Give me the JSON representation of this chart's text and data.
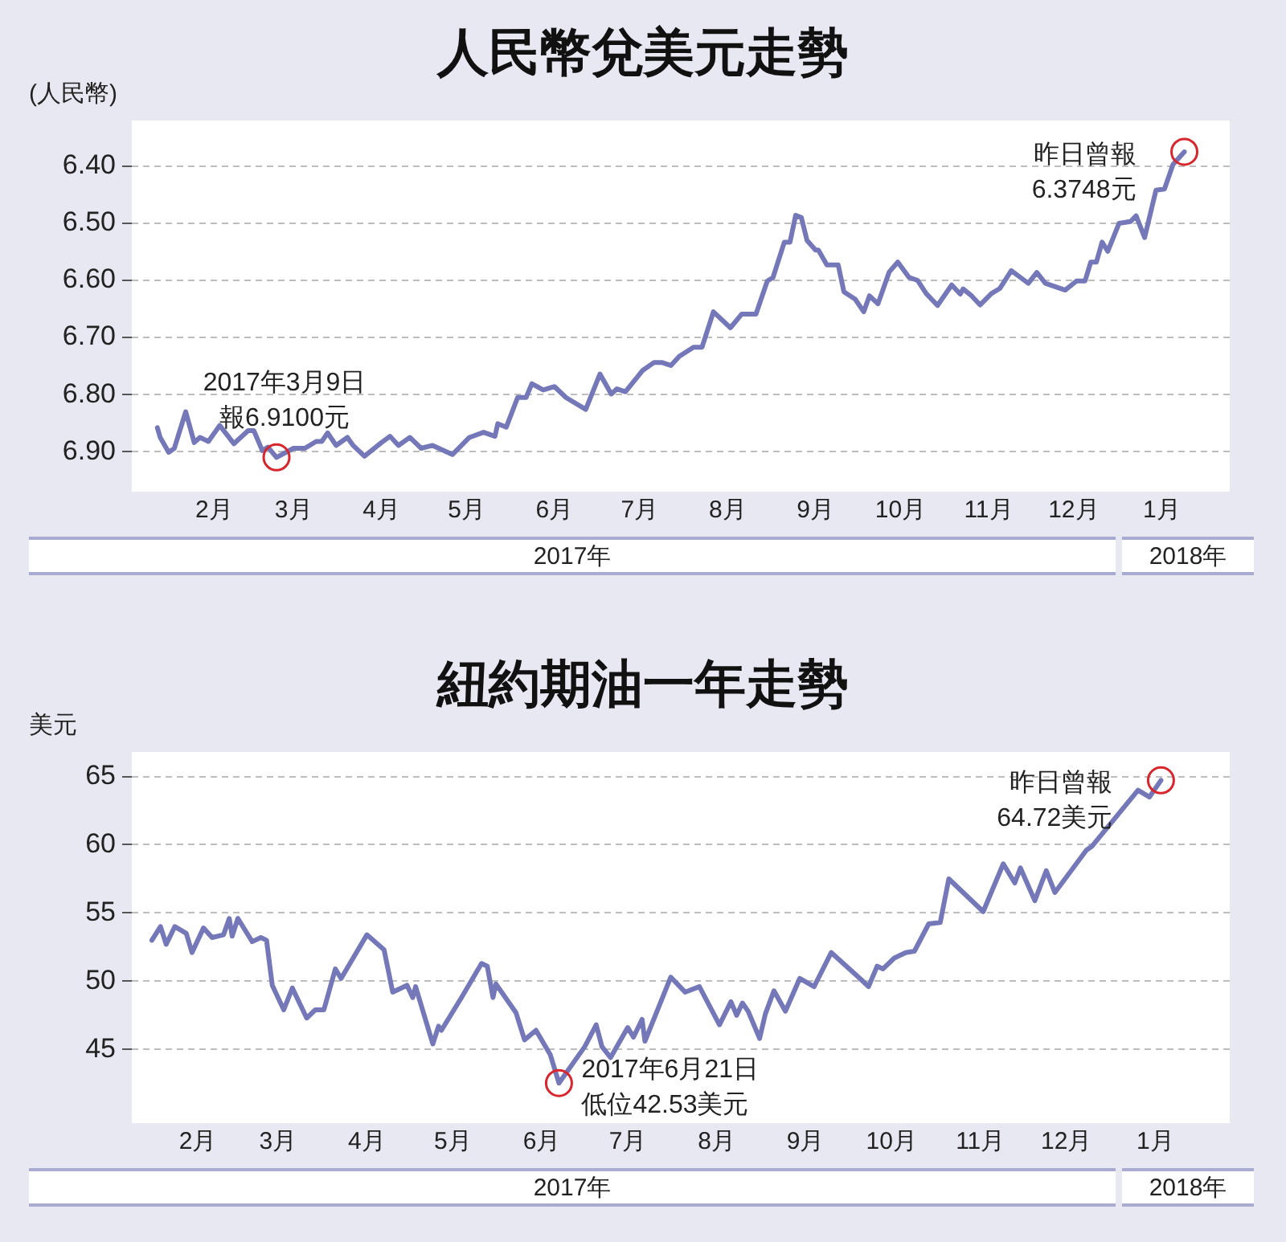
{
  "chart_data": [
    {
      "type": "line",
      "title": "人民幣兌美元走勢",
      "ylabel": "(人民幣)",
      "x": [
        "2017-01-26",
        "2017-01-27",
        "2017-01-30",
        "2017-02-01",
        "2017-02-05",
        "2017-02-08",
        "2017-02-10",
        "2017-02-13",
        "2017-02-17",
        "2017-02-22",
        "2017-02-27",
        "2017-03-01",
        "2017-03-04",
        "2017-03-06",
        "2017-03-09",
        "2017-03-15",
        "2017-03-19",
        "2017-03-23",
        "2017-03-25",
        "2017-03-27",
        "2017-03-30",
        "2017-04-03",
        "2017-04-05",
        "2017-04-09",
        "2017-04-15",
        "2017-04-18",
        "2017-04-21",
        "2017-04-25",
        "2017-04-29",
        "2017-05-03",
        "2017-05-10",
        "2017-05-16",
        "2017-05-21",
        "2017-05-25",
        "2017-05-26",
        "2017-05-29",
        "2017-06-02",
        "2017-06-05",
        "2017-06-07",
        "2017-06-11",
        "2017-06-15",
        "2017-06-19",
        "2017-06-26",
        "2017-07-01",
        "2017-07-05",
        "2017-07-07",
        "2017-07-10",
        "2017-07-16",
        "2017-07-20",
        "2017-07-23",
        "2017-07-26",
        "2017-07-29",
        "2017-08-03",
        "2017-08-06",
        "2017-08-10",
        "2017-08-16",
        "2017-08-20",
        "2017-08-25",
        "2017-08-29",
        "2017-08-31",
        "2017-09-04",
        "2017-09-06",
        "2017-09-08",
        "2017-09-10",
        "2017-09-12",
        "2017-09-15",
        "2017-09-16",
        "2017-09-19",
        "2017-09-23",
        "2017-09-25",
        "2017-09-29",
        "2017-10-02",
        "2017-10-04",
        "2017-10-07",
        "2017-10-11",
        "2017-10-14",
        "2017-10-18",
        "2017-10-21",
        "2017-10-24",
        "2017-10-28",
        "2017-11-02",
        "2017-11-05",
        "2017-11-06",
        "2017-11-09",
        "2017-11-12",
        "2017-11-16",
        "2017-11-19",
        "2017-11-23",
        "2017-11-29",
        "2017-12-02",
        "2017-12-05",
        "2017-12-12",
        "2017-12-16",
        "2017-12-19",
        "2017-12-21",
        "2017-12-23",
        "2017-12-25",
        "2017-12-27",
        "2017-12-31",
        "2018-01-04",
        "2018-01-06",
        "2018-01-09",
        "2018-01-13",
        "2018-01-16",
        "2018-01-19",
        "2018-01-23"
      ],
      "series": [
        {
          "color": "#7478b8",
          "values": [
            6.858,
            6.875,
            6.901,
            6.894,
            6.83,
            6.884,
            6.875,
            6.882,
            6.854,
            6.886,
            6.863,
            6.863,
            6.898,
            6.892,
            6.91,
            6.894,
            6.894,
            6.882,
            6.882,
            6.867,
            6.889,
            6.875,
            6.889,
            6.908,
            6.884,
            6.873,
            6.889,
            6.875,
            6.894,
            6.889,
            6.905,
            6.875,
            6.866,
            6.873,
            6.851,
            6.857,
            6.805,
            6.805,
            6.781,
            6.792,
            6.786,
            6.805,
            6.826,
            6.764,
            6.799,
            6.79,
            6.795,
            6.758,
            6.744,
            6.744,
            6.749,
            6.733,
            6.717,
            6.717,
            6.655,
            6.683,
            6.659,
            6.659,
            6.601,
            6.595,
            6.533,
            6.533,
            6.486,
            6.49,
            6.53,
            6.547,
            6.547,
            6.573,
            6.573,
            6.62,
            6.633,
            6.655,
            6.627,
            6.641,
            6.585,
            6.568,
            6.595,
            6.6,
            6.623,
            6.644,
            6.608,
            6.624,
            6.615,
            6.627,
            6.643,
            6.623,
            6.614,
            6.583,
            6.605,
            6.586,
            6.605,
            6.617,
            6.601,
            6.601,
            6.568,
            6.568,
            6.533,
            6.549,
            6.5,
            6.497,
            6.487,
            6.525,
            6.442,
            6.44,
            6.397,
            6.375
          ]
        }
      ],
      "xlim": [
        "2017-01-17",
        "2018-02-08"
      ],
      "xticks": [
        {
          "value": "2017-02-15",
          "label": "2月"
        },
        {
          "value": "2017-03-15",
          "label": "3月"
        },
        {
          "value": "2017-04-15",
          "label": "4月"
        },
        {
          "value": "2017-05-15",
          "label": "5月"
        },
        {
          "value": "2017-06-15",
          "label": "6月"
        },
        {
          "value": "2017-07-15",
          "label": "7月"
        },
        {
          "value": "2017-08-15",
          "label": "8月"
        },
        {
          "value": "2017-09-15",
          "label": "9月"
        },
        {
          "value": "2017-10-15",
          "label": "10月"
        },
        {
          "value": "2017-11-15",
          "label": "11月"
        },
        {
          "value": "2017-12-15",
          "label": "12月"
        },
        {
          "value": "2018-01-15",
          "label": "1月"
        }
      ],
      "ylim": [
        6.97,
        6.32
      ],
      "yticks": [
        {
          "value": 6.4,
          "label": "6.40"
        },
        {
          "value": 6.5,
          "label": "6.50"
        },
        {
          "value": 6.6,
          "label": "6.60"
        },
        {
          "value": 6.7,
          "label": "6.70"
        },
        {
          "value": 6.8,
          "label": "6.80"
        },
        {
          "value": 6.9,
          "label": "6.90"
        }
      ],
      "grid": "y",
      "annotations": [
        {
          "text": "2017年3月9日",
          "x": "2017-03-09",
          "y": 6.91
        },
        {
          "text": "報6.9100元",
          "x": "2017-03-09",
          "y": 6.91
        },
        {
          "text": "昨日曾報",
          "x": "2018-01-23",
          "y": 6.3748
        },
        {
          "text": "6.3748元",
          "x": "2018-01-23",
          "y": 6.3748
        },
        "2017年",
        "2018年"
      ]
    },
    {
      "type": "line",
      "title": "紐約期油一年走勢",
      "ylabel": "美元",
      "x": [
        "2017-01-30",
        "2017-02-02",
        "2017-02-04",
        "2017-02-07",
        "2017-02-11",
        "2017-02-13",
        "2017-02-17",
        "2017-02-20",
        "2017-02-24",
        "2017-02-26",
        "2017-02-27",
        "2017-03-01",
        "2017-03-06",
        "2017-03-09",
        "2017-03-11",
        "2017-03-13",
        "2017-03-17",
        "2017-03-20",
        "2017-03-25",
        "2017-03-28",
        "2017-03-31",
        "2017-04-04",
        "2017-04-06",
        "2017-04-15",
        "2017-04-21",
        "2017-04-24",
        "2017-04-29",
        "2017-05-01",
        "2017-05-02",
        "2017-05-08",
        "2017-05-10",
        "2017-05-11",
        "2017-05-18",
        "2017-05-25",
        "2017-05-27",
        "2017-05-29",
        "2017-05-30",
        "2017-06-06",
        "2017-06-09",
        "2017-06-13",
        "2017-06-18",
        "2017-06-21",
        "2017-06-30",
        "2017-07-04",
        "2017-07-06",
        "2017-07-09",
        "2017-07-15",
        "2017-07-17",
        "2017-07-20",
        "2017-07-21",
        "2017-07-30",
        "2017-08-04",
        "2017-08-09",
        "2017-08-16",
        "2017-08-20",
        "2017-08-22",
        "2017-08-24",
        "2017-08-26",
        "2017-08-30",
        "2017-09-01",
        "2017-09-04",
        "2017-09-08",
        "2017-09-13",
        "2017-09-18",
        "2017-09-24",
        "2017-10-04",
        "2017-10-07",
        "2017-10-10",
        "2017-10-12",
        "2017-10-16",
        "2017-10-20",
        "2017-10-23",
        "2017-10-28",
        "2017-11-01",
        "2017-11-04",
        "2017-11-16",
        "2017-11-23",
        "2017-11-27",
        "2017-11-29",
        "2017-12-04",
        "2017-12-08",
        "2017-12-11",
        "2017-12-22",
        "2017-12-24",
        "2018-01-09",
        "2018-01-13",
        "2018-01-17"
      ],
      "series": [
        {
          "color": "#7478b8",
          "values": [
            53.0,
            54.0,
            52.7,
            54.0,
            53.5,
            52.1,
            53.9,
            53.2,
            53.4,
            54.6,
            53.3,
            54.6,
            52.9,
            53.2,
            53.0,
            49.7,
            47.9,
            49.5,
            47.3,
            47.9,
            47.9,
            50.9,
            50.2,
            53.4,
            52.3,
            49.2,
            49.7,
            48.8,
            49.6,
            45.4,
            46.7,
            46.4,
            48.8,
            51.3,
            51.1,
            48.8,
            49.8,
            47.7,
            45.7,
            46.4,
            44.6,
            42.53,
            45.2,
            46.8,
            45.2,
            44.4,
            46.6,
            45.9,
            47.2,
            45.6,
            50.3,
            49.2,
            49.6,
            46.8,
            48.5,
            47.5,
            48.4,
            47.8,
            45.8,
            47.6,
            49.3,
            47.8,
            50.2,
            49.6,
            52.1,
            50.2,
            49.6,
            51.1,
            50.9,
            51.7,
            52.1,
            52.2,
            54.2,
            54.3,
            57.5,
            55.1,
            58.6,
            57.2,
            58.3,
            55.9,
            58.1,
            56.5,
            59.6,
            59.9,
            64.0,
            63.5,
            64.72
          ]
        }
      ],
      "xlim": [
        "2017-01-23",
        "2018-02-10"
      ],
      "xticks": [
        {
          "value": "2017-02-15",
          "label": "2月"
        },
        {
          "value": "2017-03-15",
          "label": "3月"
        },
        {
          "value": "2017-04-15",
          "label": "4月"
        },
        {
          "value": "2017-05-15",
          "label": "5月"
        },
        {
          "value": "2017-06-15",
          "label": "6月"
        },
        {
          "value": "2017-07-15",
          "label": "7月"
        },
        {
          "value": "2017-08-15",
          "label": "8月"
        },
        {
          "value": "2017-09-15",
          "label": "9月"
        },
        {
          "value": "2017-10-15",
          "label": "10月"
        },
        {
          "value": "2017-11-15",
          "label": "11月"
        },
        {
          "value": "2017-12-15",
          "label": "12月"
        },
        {
          "value": "2018-01-15",
          "label": "1月"
        }
      ],
      "ylim": [
        39.6,
        66.8
      ],
      "yticks": [
        45,
        50,
        55,
        60,
        65
      ],
      "grid": "y",
      "annotations": [
        {
          "text": "2017年6月21日",
          "x": "2017-06-21",
          "y": 42.53
        },
        {
          "text": "低位42.53美元",
          "x": "2017-06-21",
          "y": 42.53
        },
        {
          "text": "昨日曾報",
          "x": "2018-01-17",
          "y": 64.72
        },
        {
          "text": "64.72美元",
          "x": "2018-01-17",
          "y": 64.72
        },
        "2017年",
        "2018年"
      ]
    }
  ]
}
